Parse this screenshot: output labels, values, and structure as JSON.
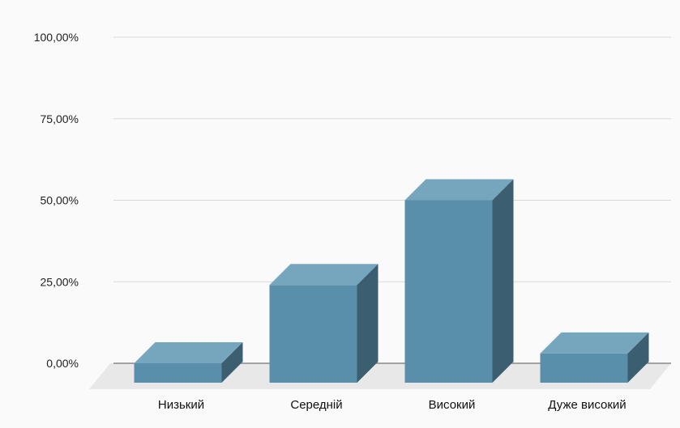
{
  "chart_data": {
    "type": "bar",
    "style": "3d-column",
    "categories": [
      "Низький",
      "Середній",
      "Високий",
      "Дуже високий"
    ],
    "values": [
      0.0,
      24.0,
      50.0,
      3.0
    ],
    "y_tick_labels": [
      "0,00%",
      "25,00%",
      "50,00%",
      "75,00%",
      "100,00%"
    ],
    "y_ticks": [
      0,
      25,
      50,
      75,
      100
    ],
    "ylim": [
      0,
      100
    ],
    "title": "",
    "xlabel": "",
    "ylabel": "",
    "grid": true,
    "legend": "none",
    "colors": {
      "bar_front": "#5a8fac",
      "bar_top": "#76a6bd",
      "bar_side": "#3b5f70",
      "grid": "#d9d9d9",
      "floor": "#e8e8e8",
      "background": "#fafafa"
    }
  }
}
